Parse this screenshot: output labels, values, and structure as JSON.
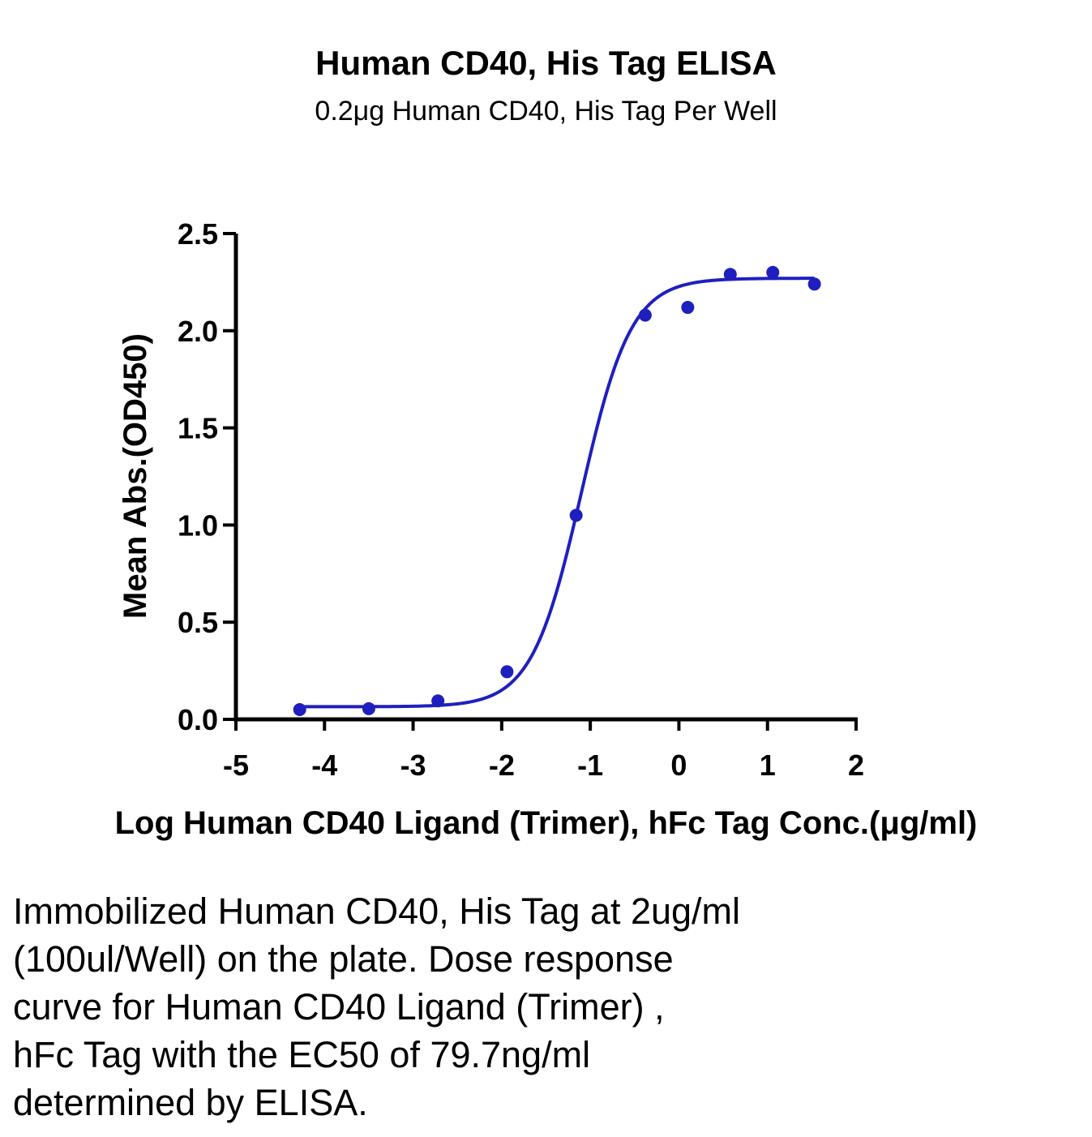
{
  "title": "Human CD40, His Tag ELISA",
  "subtitle": "0.2μg Human CD40, His Tag Per Well",
  "caption": {
    "lines": [
      "Immobilized Human CD40, His Tag at 2ug/ml",
      "(100ul/Well) on the plate. Dose response",
      "curve for Human CD40 Ligand (Trimer) ,",
      "hFc Tag with the EC50 of 79.7ng/ml",
      "determined by ELISA."
    ]
  },
  "colors": {
    "series": "#1f1fbf",
    "axis": "#000000"
  },
  "chart_data": {
    "type": "scatter",
    "title": "Human CD40, His Tag ELISA",
    "subtitle": "0.2μg Human CD40, His Tag Per Well",
    "xlabel": "Log Human CD40 Ligand (Trimer), hFc Tag Conc.(μg/ml)",
    "ylabel": "Mean Abs.(OD450)",
    "xlim": [
      -5,
      2
    ],
    "ylim": [
      0,
      2.5
    ],
    "x_ticks": [
      -5,
      -4,
      -3,
      -2,
      -1,
      0,
      1,
      2
    ],
    "x_tick_labels": [
      "-5",
      "-4",
      "-3",
      "-2",
      "-1",
      "0",
      "1",
      "2"
    ],
    "y_ticks": [
      0,
      0.5,
      1,
      1.5,
      2,
      2.5
    ],
    "y_tick_labels": [
      "0.0",
      "0.5",
      "1.0",
      "1.5",
      "2.0",
      "2.5"
    ],
    "grid": false,
    "series": [
      {
        "x": [
          -4.28,
          -3.5,
          -2.72,
          -1.94,
          -1.16,
          -0.38,
          0.1,
          0.58,
          1.06,
          1.53
        ],
        "y": [
          0.05,
          0.055,
          0.095,
          0.245,
          1.05,
          2.08,
          2.12,
          2.29,
          2.3,
          2.24
        ],
        "fit": {
          "model": "4PL",
          "bottom": 0.065,
          "top": 2.27,
          "logEC50": -1.1,
          "hill": 1.55
        }
      }
    ]
  }
}
